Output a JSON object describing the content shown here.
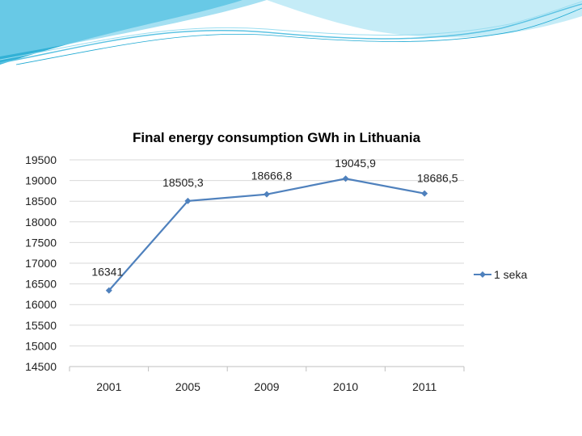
{
  "chart_data": {
    "type": "line",
    "title": "Final energy consumption GWh in Lithuania",
    "categories": [
      "2001",
      "2005",
      "2009",
      "2010",
      "2011"
    ],
    "series": [
      {
        "name": "1 seka",
        "values": [
          16341,
          18505.3,
          18666.8,
          19045.9,
          18686.5
        ],
        "labels": [
          "16341",
          "18505,3",
          "18666,8",
          "19045,9",
          "18686,5"
        ]
      }
    ],
    "ylim": [
      14500,
      19500
    ],
    "ytick_step": 500,
    "ytick_labels": [
      "14500",
      "15000",
      "15500",
      "16000",
      "16500",
      "17000",
      "17500",
      "18000",
      "18500",
      "19000",
      "19500"
    ],
    "xlabel": "",
    "ylabel": "",
    "grid": true,
    "legend_position": "right",
    "colors": {
      "series": "#4F81BD",
      "grid": "#D9D9D9",
      "axis": "#BFBFBF"
    }
  },
  "decoration": {
    "colors": [
      "#0E9BC7",
      "#4DC7E6",
      "#A8E4F3",
      "#D4F1F9"
    ]
  }
}
